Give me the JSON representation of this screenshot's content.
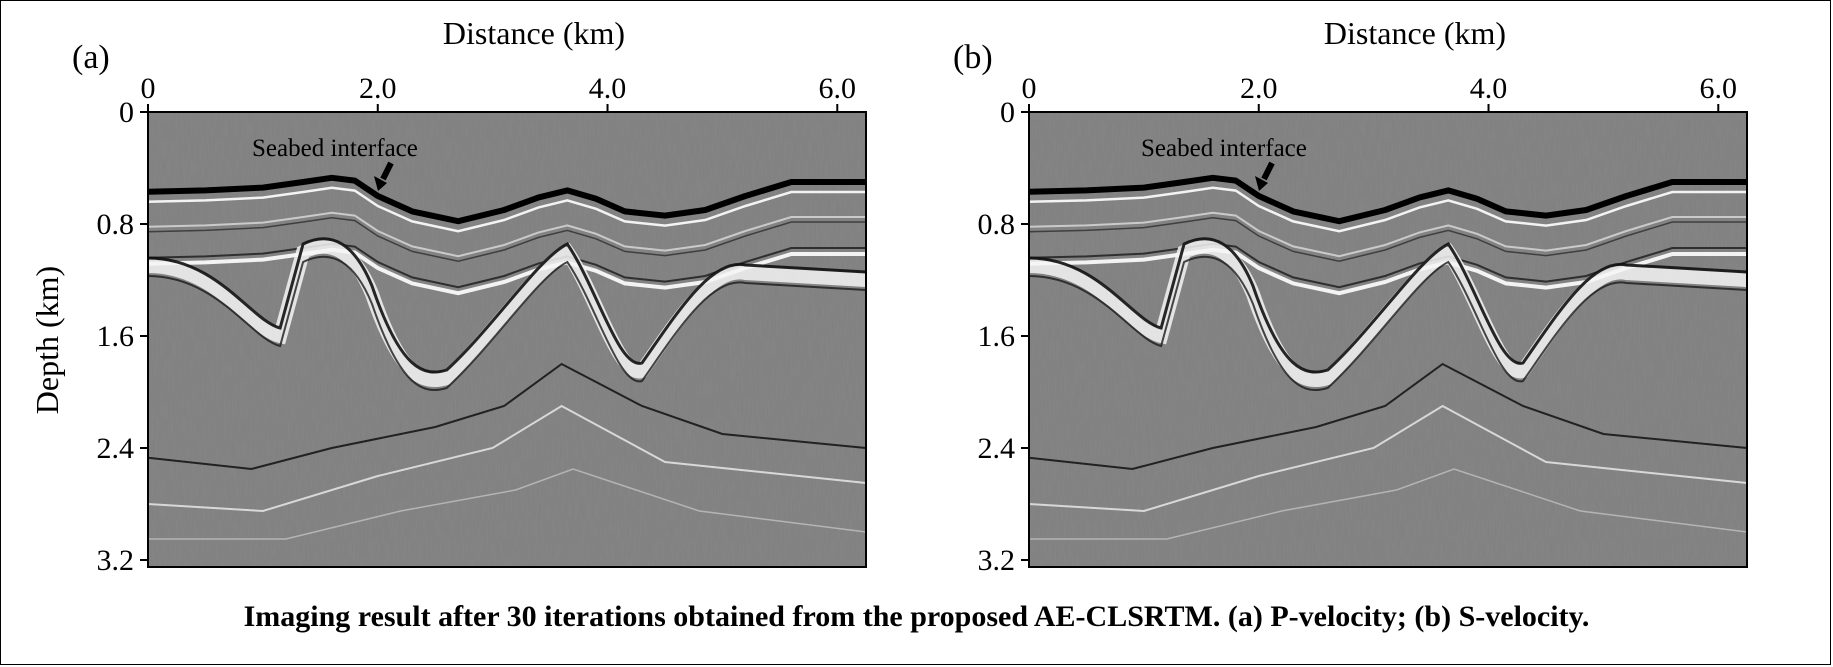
{
  "figure": {
    "caption": "Imaging result after 30 iterations obtained from the proposed AE-CLSRTM. (a) P-velocity; (b) S-velocity.",
    "colors": {
      "background": "#7f7f7f",
      "axes": "#000000",
      "text": "#000000"
    },
    "panels": [
      {
        "label": "(a)",
        "xlabel": "Distance (km)",
        "ylabel": "Depth (km)",
        "annotation": "Seabed interface"
      },
      {
        "label": "(b)",
        "xlabel": "Distance (km)",
        "annotation": "Seabed interface"
      }
    ]
  },
  "chart_data": [
    {
      "type": "heatmap",
      "title": "",
      "xlabel": "Distance (km)",
      "ylabel": "Depth (km)",
      "xticks": [
        0,
        2.0,
        4.0,
        6.0
      ],
      "xtick_labels": [
        "0",
        "2.0",
        "4.0",
        "6.0"
      ],
      "yticks": [
        0,
        0.8,
        1.6,
        2.4,
        3.2
      ],
      "ytick_labels": [
        "0",
        "0.8",
        "1.6",
        "2.4",
        "3.2"
      ],
      "xlim": [
        0,
        6.25
      ],
      "ylim": [
        0,
        3.25
      ],
      "colormap": "gray",
      "seabed_interface": {
        "x": [
          0,
          0.5,
          1.0,
          1.35,
          1.6,
          1.8,
          2.0,
          2.3,
          2.7,
          3.1,
          3.4,
          3.65,
          3.9,
          4.15,
          4.5,
          4.85,
          5.2,
          5.6,
          6.25
        ],
        "depth": [
          0.57,
          0.56,
          0.54,
          0.5,
          0.47,
          0.49,
          0.6,
          0.71,
          0.78,
          0.7,
          0.61,
          0.56,
          0.62,
          0.71,
          0.74,
          0.7,
          0.6,
          0.5,
          0.5
        ]
      }
    },
    {
      "type": "heatmap",
      "title": "",
      "xlabel": "Distance (km)",
      "ylabel": "",
      "xticks": [
        0,
        2.0,
        4.0,
        6.0
      ],
      "xtick_labels": [
        "0",
        "2.0",
        "4.0",
        "6.0"
      ],
      "yticks": [
        0,
        0.8,
        1.6,
        2.4,
        3.2
      ],
      "ytick_labels": [
        "0",
        "0.8",
        "1.6",
        "2.4",
        "3.2"
      ],
      "xlim": [
        0,
        6.25
      ],
      "ylim": [
        0,
        3.25
      ],
      "colormap": "gray",
      "seabed_interface": {
        "x": [
          0,
          0.5,
          1.0,
          1.35,
          1.6,
          1.8,
          2.0,
          2.3,
          2.7,
          3.1,
          3.4,
          3.65,
          3.9,
          4.15,
          4.5,
          4.85,
          5.2,
          5.6,
          6.25
        ],
        "depth": [
          0.57,
          0.56,
          0.54,
          0.5,
          0.47,
          0.49,
          0.6,
          0.71,
          0.78,
          0.7,
          0.61,
          0.56,
          0.62,
          0.71,
          0.74,
          0.7,
          0.6,
          0.5,
          0.5
        ]
      }
    }
  ]
}
